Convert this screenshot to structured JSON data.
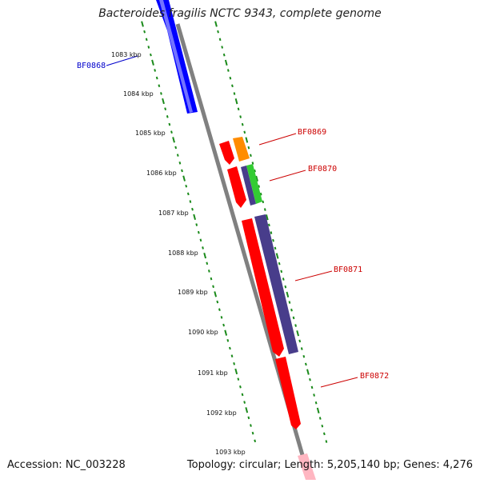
{
  "title": "Bacteroides fragilis NCTC 9343, complete genome",
  "accession": "Accession: NC_003228",
  "topology": "Topology: circular; Length: 5,205,140 bp; Genes: 4,276",
  "ruler_labels": [
    "1083 kbp",
    "1084 kbp",
    "1085 kbp",
    "1086 kbp",
    "1087 kbp",
    "1088 kbp",
    "1089 kbp",
    "1090 kbp",
    "1091 kbp",
    "1092 kbp",
    "1093 kbp"
  ],
  "gene_labels": [
    {
      "name": "BF0868",
      "color": "#0000cc"
    },
    {
      "name": "BF0869",
      "color": "#cc0000"
    },
    {
      "name": "BF0870",
      "color": "#cc0000"
    },
    {
      "name": "BF0871",
      "color": "#cc0000"
    },
    {
      "name": "BF0872",
      "color": "#cc0000"
    }
  ],
  "colors": {
    "backbone": "#808080",
    "ticks": "#1a8a1a",
    "forward_gene": "#0000ff",
    "reverse_gene": "#ff0000",
    "orange_gene": "#ff8c00",
    "green_gene": "#33cc33",
    "purple_gene": "#483d8b",
    "pink_gene": "#ffb6c1"
  }
}
